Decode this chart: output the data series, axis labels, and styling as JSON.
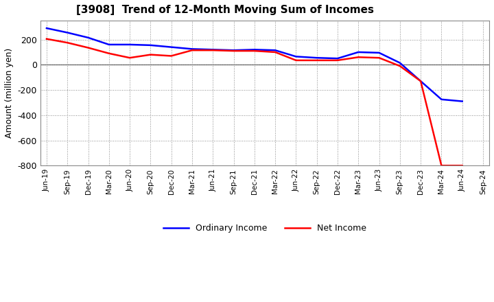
{
  "title": "[3908]  Trend of 12-Month Moving Sum of Incomes",
  "ylabel": "Amount (million yen)",
  "ylim": [
    -800,
    350
  ],
  "yticks": [
    -800,
    -600,
    -400,
    -200,
    0,
    200
  ],
  "fig_bg_color": "#ffffff",
  "plot_bg_color": "#ffffff",
  "ordinary_income_color": "#0000ff",
  "net_income_color": "#ff0000",
  "line_width": 1.8,
  "labels": [
    "Jun-19",
    "Sep-19",
    "Dec-19",
    "Mar-20",
    "Jun-20",
    "Sep-20",
    "Dec-20",
    "Mar-21",
    "Jun-21",
    "Sep-21",
    "Dec-21",
    "Mar-22",
    "Jun-22",
    "Sep-22",
    "Dec-22",
    "Mar-23",
    "Jun-23",
    "Sep-23",
    "Dec-23",
    "Mar-24",
    "Jun-24",
    "Sep-24"
  ],
  "ordinary_income": [
    290,
    255,
    215,
    160,
    160,
    155,
    140,
    125,
    120,
    115,
    120,
    115,
    65,
    55,
    50,
    100,
    95,
    15,
    -130,
    -275,
    -290,
    null
  ],
  "net_income": [
    205,
    175,
    135,
    90,
    55,
    80,
    70,
    115,
    115,
    110,
    110,
    100,
    35,
    35,
    35,
    60,
    55,
    -10,
    -130,
    -800,
    -800,
    null
  ]
}
